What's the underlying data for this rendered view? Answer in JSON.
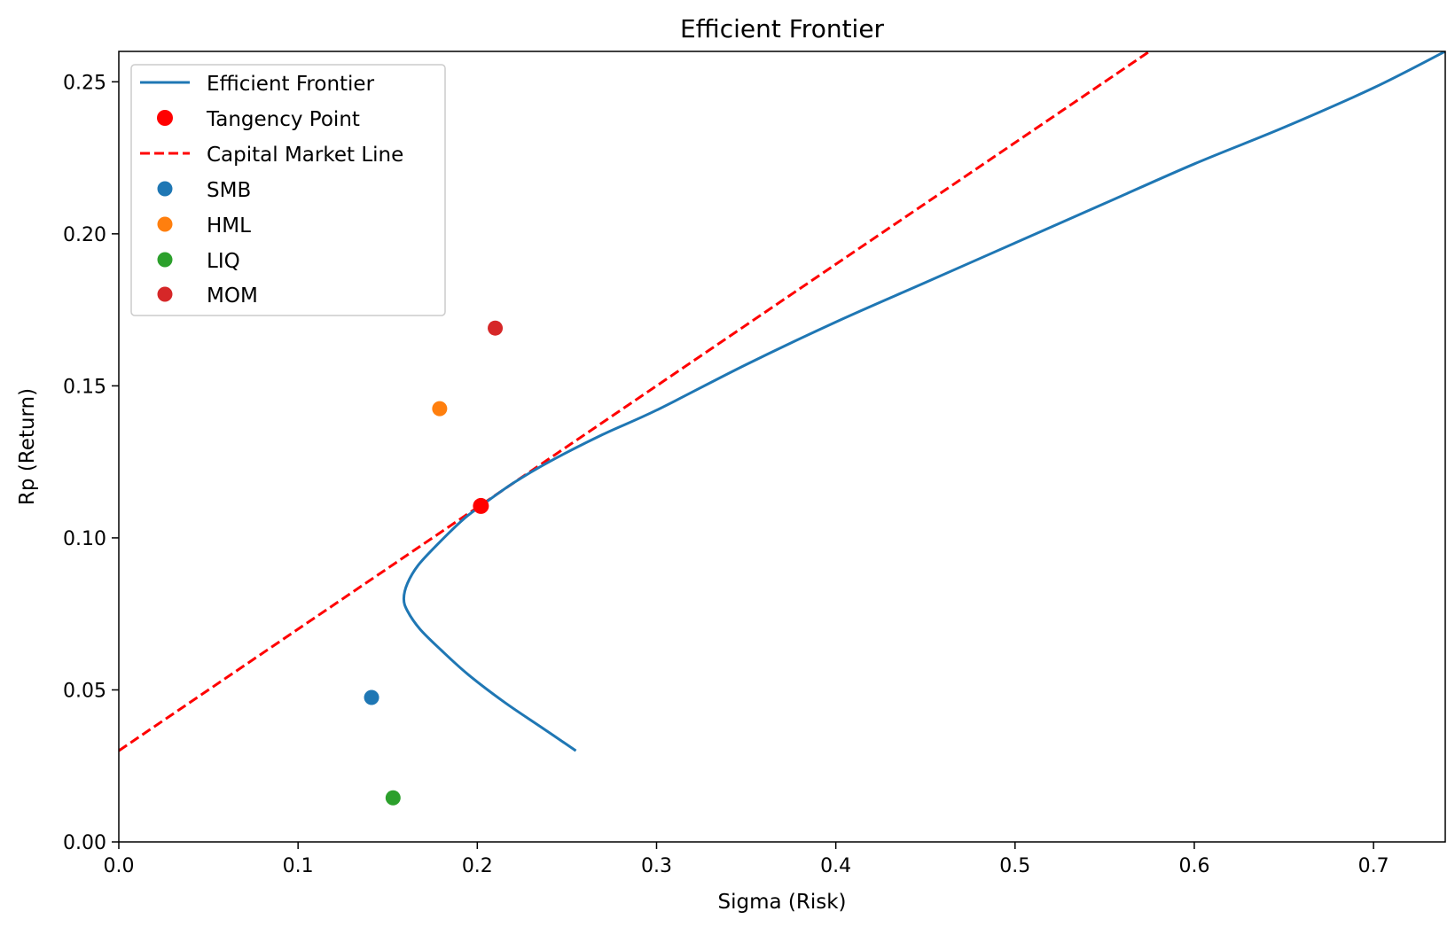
{
  "chart_data": {
    "type": "line",
    "title": "Efficient Frontier",
    "xlabel": "Sigma (Risk)",
    "ylabel": "Rp (Return)",
    "xlim": [
      0,
      0.74
    ],
    "ylim": [
      0,
      0.26
    ],
    "xticks": [
      0.0,
      0.1,
      0.2,
      0.3,
      0.4,
      0.5,
      0.6,
      0.7
    ],
    "xtick_labels": [
      "0.0",
      "0.1",
      "0.2",
      "0.3",
      "0.4",
      "0.5",
      "0.6",
      "0.7"
    ],
    "yticks": [
      0.0,
      0.05,
      0.1,
      0.15,
      0.2,
      0.25
    ],
    "ytick_labels": [
      "0.00",
      "0.05",
      "0.10",
      "0.15",
      "0.20",
      "0.25"
    ],
    "grid": false,
    "legend_position": "top-left",
    "frontier": {
      "name": "Efficient Frontier",
      "color": "#1f77b4",
      "x": [
        0.255,
        0.235,
        0.215,
        0.195,
        0.18,
        0.168,
        0.161,
        0.159,
        0.161,
        0.167,
        0.178,
        0.192,
        0.202,
        0.22,
        0.24,
        0.27,
        0.3,
        0.35,
        0.4,
        0.45,
        0.5,
        0.55,
        0.6,
        0.65,
        0.7,
        0.74
      ],
      "y": [
        0.03,
        0.038,
        0.046,
        0.055,
        0.063,
        0.07,
        0.076,
        0.08,
        0.085,
        0.091,
        0.098,
        0.106,
        0.1105,
        0.118,
        0.125,
        0.134,
        0.142,
        0.157,
        0.171,
        0.184,
        0.197,
        0.21,
        0.223,
        0.235,
        0.248,
        0.26
      ]
    },
    "tangency": {
      "name": "Tangency Point",
      "color": "#ff0000",
      "x": 0.202,
      "y": 0.1105
    },
    "cml": {
      "name": "Capital Market Line",
      "color": "#ff0000",
      "x": [
        0,
        0.575
      ],
      "y": [
        0.03,
        0.26
      ]
    },
    "assets": [
      {
        "name": "SMB",
        "color": "#1f77b4",
        "x": 0.141,
        "y": 0.0475
      },
      {
        "name": "HML",
        "color": "#ff7f0e",
        "x": 0.179,
        "y": 0.1425
      },
      {
        "name": "LIQ",
        "color": "#2ca02c",
        "x": 0.153,
        "y": 0.0145
      },
      {
        "name": "MOM",
        "color": "#d62728",
        "x": 0.21,
        "y": 0.169
      }
    ]
  }
}
